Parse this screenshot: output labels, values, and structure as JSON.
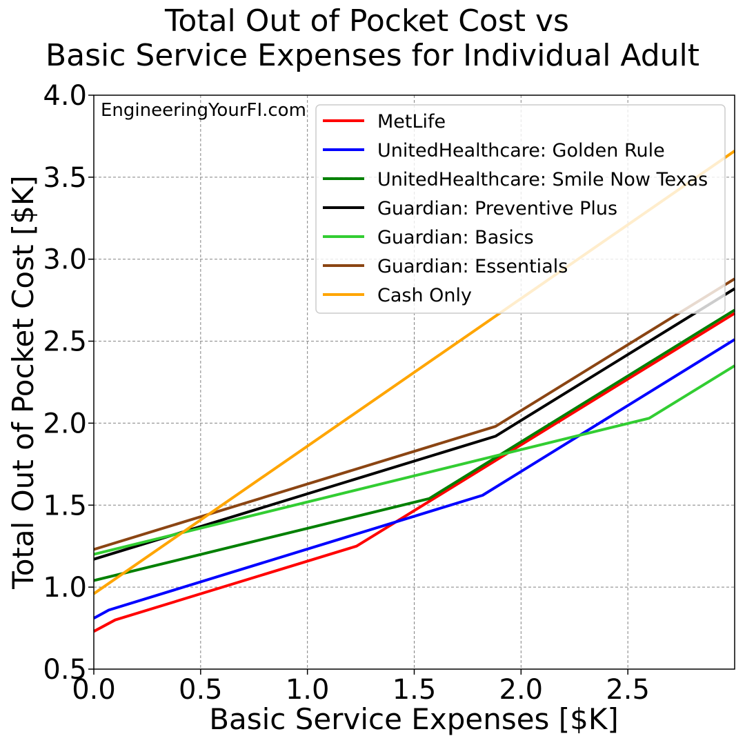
{
  "chart_data": {
    "type": "line",
    "title_line1": "Total Out of Pocket Cost vs",
    "title_line2": "Basic Service Expenses for Individual Adult",
    "xlabel": "Basic Service Expenses [$K]",
    "ylabel": "Total Out of Pocket Cost [$K]",
    "xlim": [
      0,
      3.0
    ],
    "ylim": [
      0.5,
      4.0
    ],
    "xticks": [
      "0.0",
      "0.5",
      "1.0",
      "1.5",
      "2.0",
      "2.5"
    ],
    "xtick_values": [
      0,
      0.5,
      1.0,
      1.5,
      2.0,
      2.5
    ],
    "yticks": [
      "0.5",
      "1.0",
      "1.5",
      "2.0",
      "2.5",
      "3.0",
      "3.5",
      "4.0"
    ],
    "ytick_values": [
      0.5,
      1.0,
      1.5,
      2.0,
      2.5,
      3.0,
      3.5,
      4.0
    ],
    "grid": true,
    "legend_position": "top-right",
    "annotation": "EngineeringYourFI.com",
    "series": [
      {
        "name": "MetLife",
        "color": "#ff0000",
        "points": [
          [
            0,
            0.73
          ],
          [
            0.1,
            0.8
          ],
          [
            1.23,
            1.25
          ],
          [
            3.0,
            2.67
          ]
        ]
      },
      {
        "name": "UnitedHealthcare: Golden Rule",
        "color": "#0000ff",
        "points": [
          [
            0,
            0.81
          ],
          [
            0.07,
            0.86
          ],
          [
            1.82,
            1.56
          ],
          [
            3.0,
            2.51
          ]
        ]
      },
      {
        "name": "UnitedHealthcare: Smile Now Texas",
        "color": "#008000",
        "points": [
          [
            0,
            1.04
          ],
          [
            1.57,
            1.54
          ],
          [
            3.0,
            2.69
          ]
        ]
      },
      {
        "name": "Guardian: Preventive Plus",
        "color": "#000000",
        "points": [
          [
            0,
            1.17
          ],
          [
            1.88,
            1.92
          ],
          [
            3.0,
            2.82
          ]
        ]
      },
      {
        "name": "Guardian: Basics",
        "color": "#32cd32",
        "points": [
          [
            0,
            1.2
          ],
          [
            2.6,
            2.03
          ],
          [
            3.0,
            2.35
          ]
        ]
      },
      {
        "name": "Guardian: Essentials",
        "color": "#8b4513",
        "points": [
          [
            0,
            1.23
          ],
          [
            1.88,
            1.98
          ],
          [
            3.0,
            2.88
          ]
        ]
      },
      {
        "name": "Cash Only",
        "color": "#ffa500",
        "points": [
          [
            0,
            0.96
          ],
          [
            3.0,
            3.66
          ]
        ]
      }
    ]
  }
}
